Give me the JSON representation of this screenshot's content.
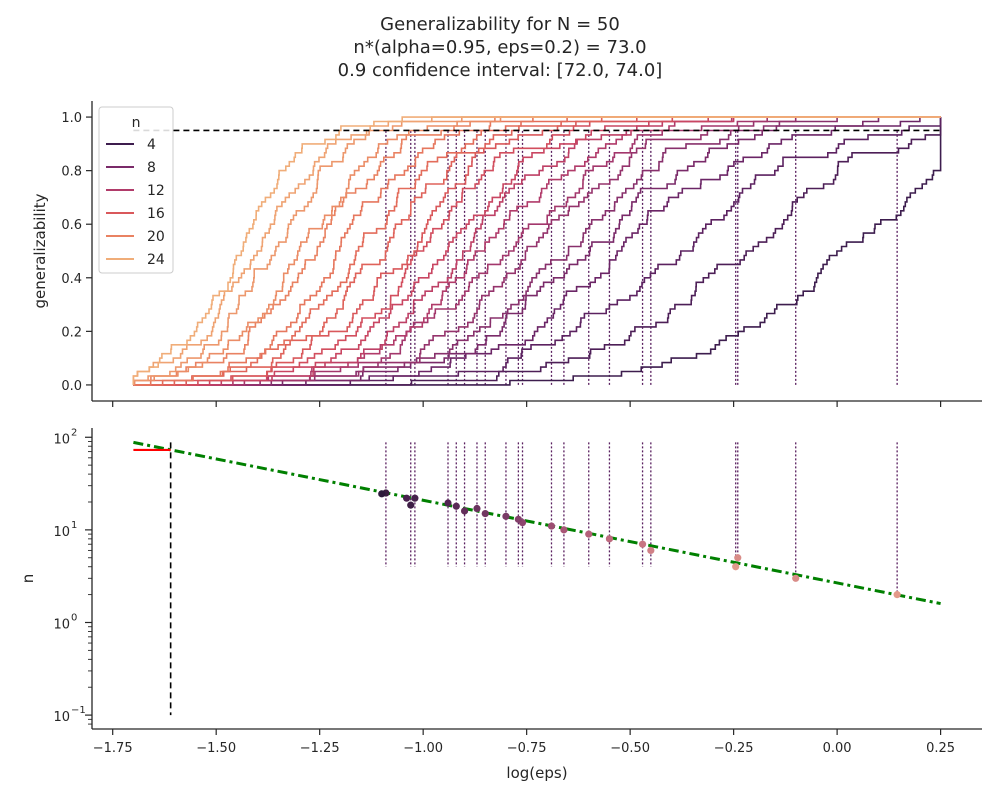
{
  "chart_data": [
    {
      "type": "line",
      "ylabel": "generalizability",
      "xlim": [
        -1.8,
        0.35
      ],
      "ylim": [
        -0.06,
        1.06
      ],
      "yticks": [
        "0.0",
        "0.2",
        "0.4",
        "0.6",
        "0.8",
        "1.0"
      ],
      "yticks_values": [
        0.0,
        0.2,
        0.4,
        0.6,
        0.8,
        1.0
      ],
      "threshold_line": 0.95,
      "legend": {
        "title": "n",
        "placement": "top-left",
        "entries": [
          "4",
          "8",
          "12",
          "16",
          "20",
          "24"
        ]
      },
      "palette": [
        "#2d1a3b",
        "#8a2a59",
        "#d6445a",
        "#f0a76f"
      ],
      "series": [
        {
          "n": 4,
          "color": "#3d1d4e",
          "start": -1.7,
          "mid": 0.02,
          "end": 0.25,
          "crossing": 0.145
        },
        {
          "n": 5,
          "color": "#4d1f57",
          "start": -1.7,
          "mid": -0.22,
          "end": 0.25,
          "crossing": -0.1
        },
        {
          "n": 6,
          "color": "#5c2260",
          "start": -1.7,
          "mid": -0.37,
          "end": 0.25,
          "crossing": -0.245
        },
        {
          "n": 7,
          "color": "#6b2566",
          "start": -1.7,
          "mid": -0.5,
          "end": 0.2,
          "crossing": -0.24
        },
        {
          "n": 8,
          "color": "#7a2a69",
          "start": -1.7,
          "mid": -0.6,
          "end": 0.1,
          "crossing": -0.45
        },
        {
          "n": 9,
          "color": "#88306c",
          "start": -1.7,
          "mid": -0.67,
          "end": 0.0,
          "crossing": -0.47
        },
        {
          "n": 10,
          "color": "#95336c",
          "start": -1.7,
          "mid": -0.74,
          "end": -0.1,
          "crossing": -0.55
        },
        {
          "n": 11,
          "color": "#a3376c",
          "start": -1.7,
          "mid": -0.8,
          "end": -0.15,
          "crossing": -0.6
        },
        {
          "n": 12,
          "color": "#b13b6a",
          "start": -1.7,
          "mid": -0.85,
          "end": -0.2,
          "crossing": -0.66
        },
        {
          "n": 13,
          "color": "#be4066",
          "start": -1.7,
          "mid": -0.9,
          "end": -0.25,
          "crossing": -0.69
        },
        {
          "n": 14,
          "color": "#c94662",
          "start": -1.7,
          "mid": -0.95,
          "end": -0.3,
          "crossing": -0.76
        },
        {
          "n": 15,
          "color": "#d24e5e",
          "start": -1.7,
          "mid": -1.0,
          "end": -0.35,
          "crossing": -0.77
        },
        {
          "n": 16,
          "color": "#d9585b",
          "start": -1.7,
          "mid": -1.05,
          "end": -0.4,
          "crossing": -0.8
        },
        {
          "n": 17,
          "color": "#df625a",
          "start": -1.7,
          "mid": -1.1,
          "end": -0.45,
          "crossing": -0.85
        },
        {
          "n": 18,
          "color": "#e36c5b",
          "start": -1.7,
          "mid": -1.15,
          "end": -0.5,
          "crossing": -0.87
        },
        {
          "n": 19,
          "color": "#e6775e",
          "start": -1.7,
          "mid": -1.2,
          "end": -0.55,
          "crossing": -0.9
        },
        {
          "n": 20,
          "color": "#e98262",
          "start": -1.7,
          "mid": -1.26,
          "end": -0.6,
          "crossing": -0.92
        },
        {
          "n": 21,
          "color": "#eb8d67",
          "start": -1.7,
          "mid": -1.3,
          "end": -0.65,
          "crossing": -0.94
        },
        {
          "n": 22,
          "color": "#ed986d",
          "start": -1.7,
          "mid": -1.36,
          "end": -0.7,
          "crossing": -1.02
        },
        {
          "n": 23,
          "color": "#efa373",
          "start": -1.7,
          "mid": -1.4,
          "end": -0.75,
          "crossing": -1.03
        },
        {
          "n": 24,
          "color": "#f0ad79",
          "start": -1.7,
          "mid": -1.44,
          "end": -0.8,
          "crossing": -1.09
        }
      ]
    },
    {
      "type": "scatter",
      "xlabel": "log(eps)",
      "ylabel": "n",
      "yscale": "log",
      "xlim": [
        -1.8,
        0.35
      ],
      "ylim_log10": [
        -1.15,
        2.1
      ],
      "xticks": [
        "−1.75",
        "−1.50",
        "−1.25",
        "−1.00",
        "−0.75",
        "−0.50",
        "−0.25",
        "0.00",
        "0.25"
      ],
      "xticks_values": [
        -1.75,
        -1.5,
        -1.25,
        -1.0,
        -0.75,
        -0.5,
        -0.25,
        0.0,
        0.25
      ],
      "yticks": [
        "10",
        "10",
        "10",
        "10"
      ],
      "yticks_exp": [
        "−1",
        "0",
        "1",
        "2"
      ],
      "yticks_values_log10": [
        -1,
        0,
        1,
        2
      ],
      "points": [
        {
          "x": 0.145,
          "n": 2.0
        },
        {
          "x": -0.1,
          "n": 3.0
        },
        {
          "x": -0.245,
          "n": 4.0
        },
        {
          "x": -0.24,
          "n": 5.0
        },
        {
          "x": -0.45,
          "n": 6.0
        },
        {
          "x": -0.47,
          "n": 7.0
        },
        {
          "x": -0.55,
          "n": 8.0
        },
        {
          "x": -0.6,
          "n": 9.0
        },
        {
          "x": -0.66,
          "n": 10.0
        },
        {
          "x": -0.69,
          "n": 11.0
        },
        {
          "x": -0.76,
          "n": 12.0
        },
        {
          "x": -0.77,
          "n": 13.0
        },
        {
          "x": -0.8,
          "n": 14.0
        },
        {
          "x": -0.85,
          "n": 15.0
        },
        {
          "x": -0.87,
          "n": 17.0
        },
        {
          "x": -0.9,
          "n": 16.0
        },
        {
          "x": -0.92,
          "n": 18.0
        },
        {
          "x": -0.94,
          "n": 19.5
        },
        {
          "x": -1.02,
          "n": 22.0
        },
        {
          "x": -1.03,
          "n": 18.5
        },
        {
          "x": -1.04,
          "n": 22.0
        },
        {
          "x": -1.09,
          "n": 25.0
        },
        {
          "x": -1.1,
          "n": 24.5
        }
      ],
      "fit_line": {
        "x": [
          -1.7,
          0.25
        ],
        "n": [
          88.0,
          1.6
        ],
        "color": "#008000",
        "style": "dash-dot"
      },
      "red_segment": {
        "x": [
          -1.7,
          -1.61
        ],
        "n": 73.0,
        "color": "#ff0000"
      },
      "vline": {
        "x": -1.61,
        "n_range": [
          0.1,
          88.0
        ]
      }
    }
  ],
  "title_lines": [
    "Generalizability for N = 50",
    "n*(alpha=0.95, eps=0.2) = 73.0",
    "0.9 confidence interval: [72.0, 74.0]"
  ]
}
